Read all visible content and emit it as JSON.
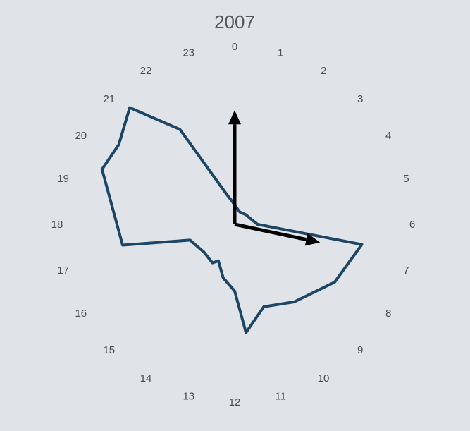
{
  "chart_data": {
    "type": "radar",
    "title": "2007",
    "angular_axis": {
      "labels": [
        "0",
        "1",
        "2",
        "3",
        "4",
        "5",
        "6",
        "7",
        "8",
        "9",
        "10",
        "11",
        "12",
        "13",
        "14",
        "15",
        "16",
        "17",
        "18",
        "19",
        "20",
        "21",
        "22",
        "23"
      ],
      "direction": "clockwise",
      "zero_at": "top"
    },
    "radial_range": [
      0,
      1
    ],
    "grid": false,
    "series": [
      {
        "color": "#1d4566",
        "points": [
          {
            "hour": 0.0,
            "r": 0.13
          },
          {
            "hour": 1.5,
            "r": 0.09
          },
          {
            "hour": 3.3,
            "r": 0.1
          },
          {
            "hour": 5.0,
            "r": 0.12
          },
          {
            "hour": 6.0,
            "r": 0.155
          },
          {
            "hour": 6.6,
            "r": 0.87
          },
          {
            "hour": 8.0,
            "r": 0.78
          },
          {
            "hour": 9.5,
            "r": 0.66
          },
          {
            "hour": 10.7,
            "r": 0.59
          },
          {
            "hour": 11.6,
            "r": 0.735
          },
          {
            "hour": 12.0,
            "r": 0.45
          },
          {
            "hour": 12.8,
            "r": 0.37
          },
          {
            "hour": 13.6,
            "r": 0.27
          },
          {
            "hour": 14.0,
            "r": 0.3
          },
          {
            "hour": 15.2,
            "r": 0.28
          },
          {
            "hour": 16.7,
            "r": 0.32
          },
          {
            "hour": 17.3,
            "r": 0.77
          },
          {
            "hour": 19.5,
            "r": 0.97
          },
          {
            "hour": 20.3,
            "r": 0.95
          },
          {
            "hour": 21.2,
            "r": 1.06
          },
          {
            "hour": 22.0,
            "r": 0.74
          },
          {
            "hour": 23.0,
            "r": 0.21
          },
          {
            "hour": 23.6,
            "r": 0.155
          }
        ]
      }
    ],
    "arrows": [
      {
        "hour": 0.0,
        "r": 0.77,
        "color": "#000000"
      },
      {
        "hour": 6.8,
        "r": 0.59,
        "color": "#000000"
      }
    ]
  }
}
